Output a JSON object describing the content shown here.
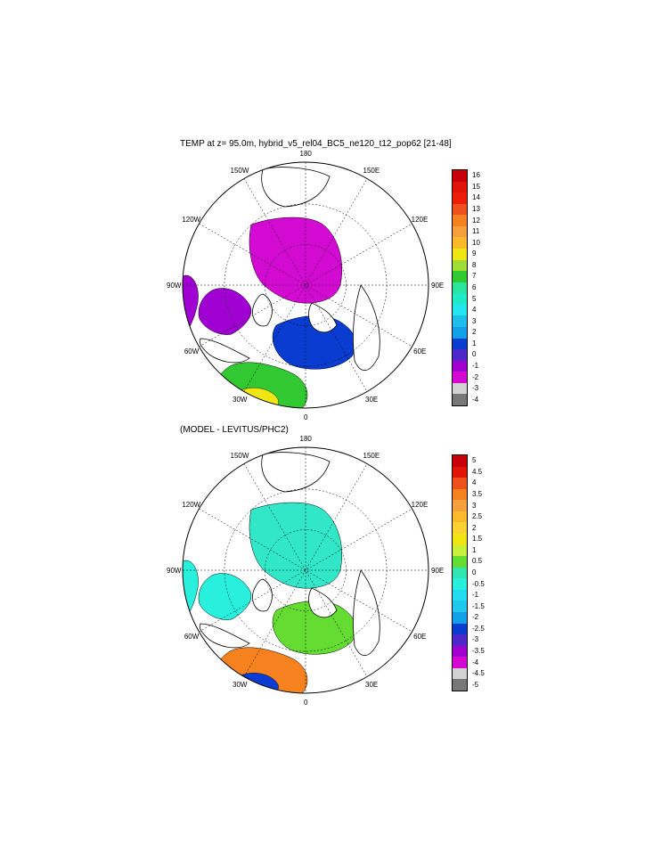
{
  "panels": [
    {
      "title": "TEMP at z=  95.0m, hybrid_v5_rel04_BC5_ne120_t12_pop62 [21-48]",
      "longitude_labels": [
        "180",
        "150E",
        "120E",
        "90E",
        "60E",
        "30E",
        "0",
        "30W",
        "60W",
        "90W",
        "120W",
        "150W"
      ],
      "colorbar": {
        "labels": [
          "16",
          "15",
          "14",
          "13",
          "12",
          "11",
          "10",
          "9",
          "8",
          "7",
          "6",
          "5",
          "4",
          "3",
          "2",
          "1",
          "0",
          "-1",
          "-2",
          "-3",
          "-4"
        ],
        "colors": [
          "#c8000a",
          "#e1140a",
          "#ec1e0a",
          "#f0501e",
          "#f5821e",
          "#f5a03c",
          "#faba2c",
          "#f0e614",
          "#a0dc32",
          "#32c832",
          "#28e6a0",
          "#20ebc8",
          "#24e6f0",
          "#1ebeeb",
          "#14a0e6",
          "#0a3cd2",
          "#5028c8",
          "#a000d2",
          "#d20ad2",
          "#d2d2d2",
          "#787878"
        ]
      },
      "regions": {
        "ocean_core": "#d20ad2",
        "shelf": "#a000d2",
        "mid": "#0a3cd2",
        "warm": "#32c832",
        "hot": "#f0e614"
      }
    },
    {
      "title": "(MODEL - LEVITUS/PHC2)",
      "longitude_labels": [
        "180",
        "150E",
        "120E",
        "90E",
        "60E",
        "30E",
        "0",
        "30W",
        "60W",
        "90W",
        "120W",
        "150W"
      ],
      "colorbar": {
        "labels": [
          "5",
          "4.5",
          "4",
          "3.5",
          "3",
          "2.5",
          "2",
          "1.5",
          "1",
          "0.5",
          "0",
          "-0.5",
          "-1",
          "-1.5",
          "-2",
          "-2.5",
          "-3",
          "-3.5",
          "-4",
          "-4.5",
          "-5"
        ],
        "colors": [
          "#c8000a",
          "#e1140a",
          "#f0501e",
          "#f5821e",
          "#f5a03c",
          "#faba2c",
          "#fad232",
          "#f0e614",
          "#c8f03c",
          "#64dc32",
          "#32e6b4",
          "#28f0dc",
          "#24dcf0",
          "#1ec8eb",
          "#14a0e6",
          "#0a3cd2",
          "#5028c8",
          "#a000d2",
          "#d20ad2",
          "#d2d2d2",
          "#787878"
        ]
      },
      "regions": {
        "ocean_core": "#32e6c8",
        "shelf": "#28f0dc",
        "mid": "#64dc32",
        "warm": "#f5821e",
        "hot": "#0a3cd2"
      }
    }
  ]
}
